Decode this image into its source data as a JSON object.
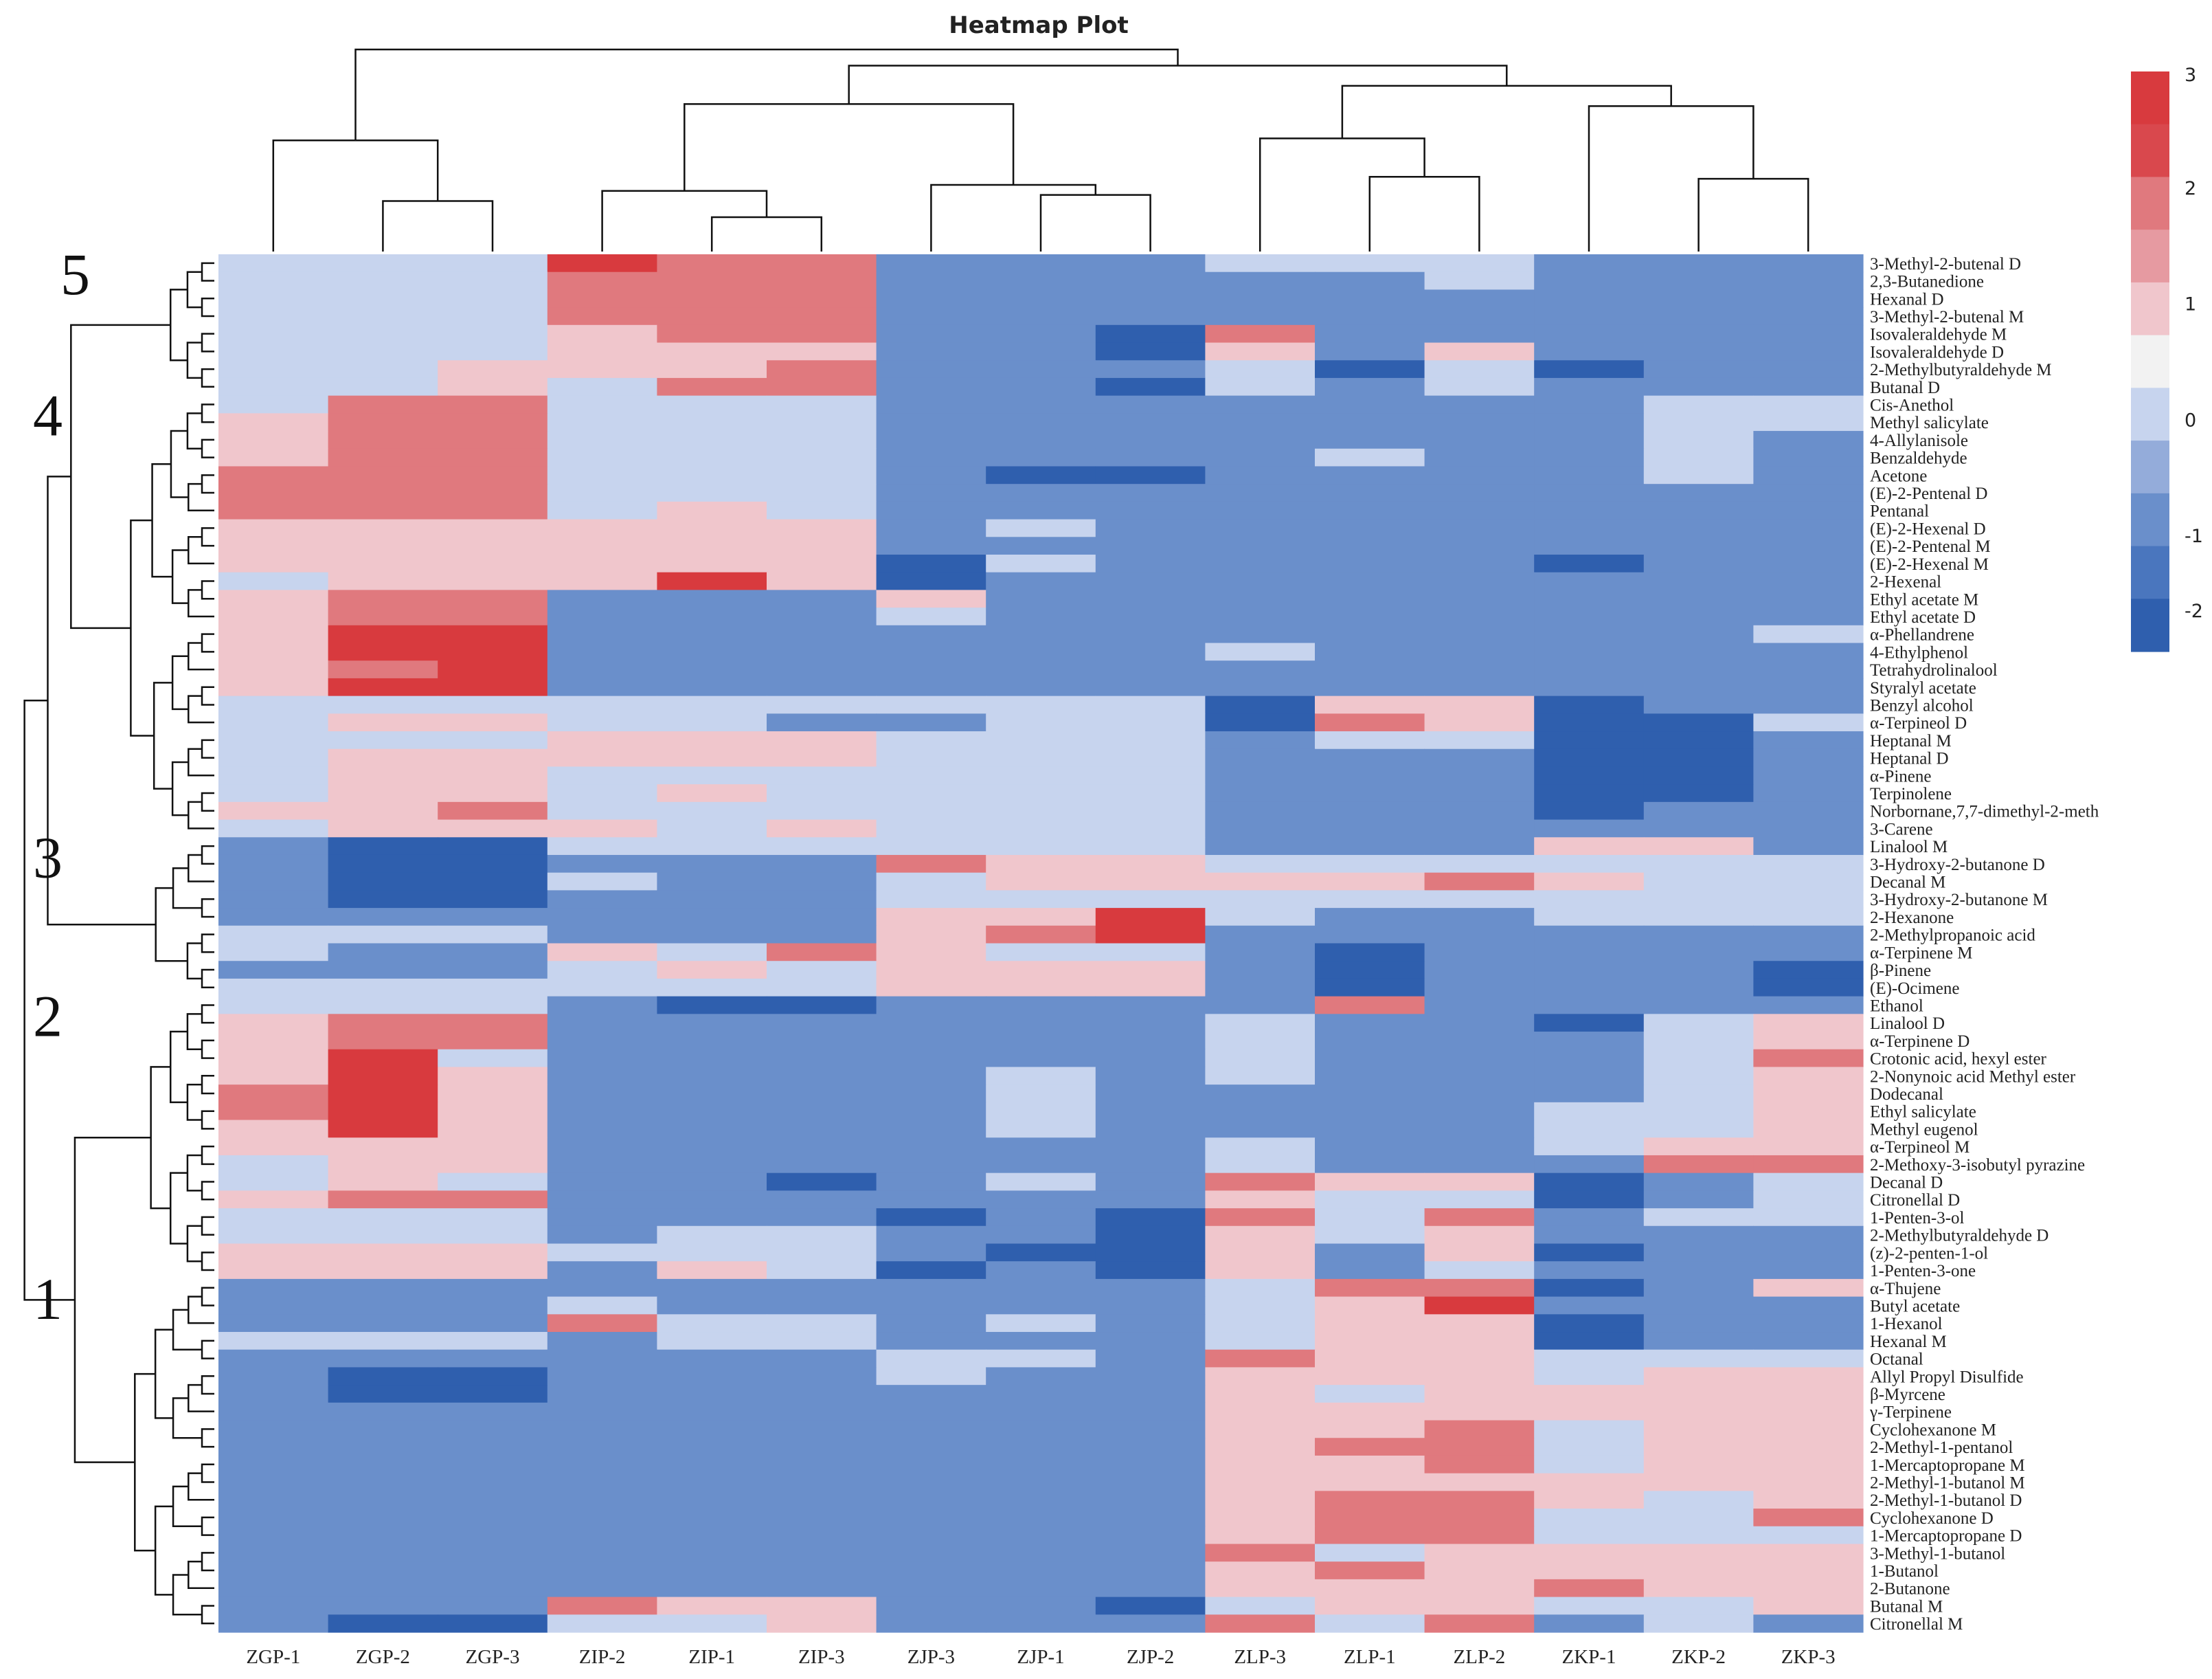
{
  "chart_data": {
    "type": "heatmap",
    "title": "Heatmap Plot",
    "columns": [
      "ZGP-1",
      "ZGP-2",
      "ZGP-3",
      "ZIP-2",
      "ZIP-1",
      "ZIP-3",
      "ZJP-3",
      "ZJP-1",
      "ZJP-2",
      "ZLP-3",
      "ZLP-1",
      "ZLP-2",
      "ZKP-1",
      "ZKP-2",
      "ZKP-3"
    ],
    "rows": [
      "3-Methyl-2-butenal D",
      "2,3-Butanedione",
      "Hexanal D",
      "3-Methyl-2-butenal M",
      "Isovaleraldehyde M",
      "Isovaleraldehyde D",
      "2-Methylbutyraldehyde M",
      "Butanal D",
      "Cis-Anethol",
      "Methyl salicylate",
      "4-Allylanisole",
      "Benzaldehyde",
      "Acetone",
      "(E)-2-Pentenal D",
      "Pentanal",
      "(E)-2-Hexenal D",
      "(E)-2-Pentenal M",
      "(E)-2-Hexenal M",
      "2-Hexenal",
      "Ethyl acetate M",
      "Ethyl acetate D",
      "α-Phellandrene",
      "4-Ethylphenol",
      "Tetrahydrolinalool",
      "Styralyl acetate",
      "Benzyl alcohol",
      "α-Terpineol D",
      "Heptanal M",
      "Heptanal D",
      "α-Pinene",
      "Terpinolene",
      "Norbornane,7,7-dimethyl-2-meth",
      "3-Carene",
      "Linalool M",
      "3-Hydroxy-2-butanone D",
      "Decanal M",
      "3-Hydroxy-2-butanone M",
      "2-Hexanone",
      "2-Methylpropanoic acid",
      "α-Terpinene M",
      "β-Pinene",
      "(E)-Ocimene",
      "Ethanol",
      "Linalool D",
      "α-Terpinene D",
      "Crotonic acid, hexyl ester",
      "2-Nonynoic acid Methyl ester",
      "Dodecanal",
      "Ethyl salicylate",
      "Methyl eugenol",
      "α-Terpineol M",
      "2-Methoxy-3-isobutyl pyrazine",
      "Decanal D",
      "Citronellal D",
      "1-Penten-3-ol",
      "2-Methylbutyraldehyde D",
      "(z)-2-penten-1-ol",
      "1-Penten-3-one",
      "α-Thujene",
      "Butyl acetate",
      "1-Hexanol",
      "Hexanal M",
      "Octanal",
      "Allyl Propyl Disulfide",
      "β-Myrcene",
      "γ-Terpinene",
      "Cyclohexanone M",
      "2-Methyl-1-pentanol",
      "1-Mercaptopropane M",
      "2-Methyl-1-butanol M",
      "2-Methyl-1-butanol D",
      "Cyclohexanone D",
      "1-Mercaptopropane D",
      "3-Methyl-1-butanol",
      "1-Butanol",
      "2-Butanone",
      "Butanal M",
      "Citronellal M"
    ],
    "values": [
      [
        0,
        0,
        0,
        3,
        2,
        2,
        -1,
        -1,
        -1,
        0,
        0,
        0,
        -1,
        -1,
        -1
      ],
      [
        0,
        0,
        0,
        2,
        2,
        2,
        -1,
        -1,
        -1,
        -1,
        -1,
        0,
        -1,
        -1,
        -1
      ],
      [
        0,
        0,
        0,
        2,
        2,
        2,
        -1,
        -1,
        -1,
        -1,
        -1,
        -1,
        -1,
        -1,
        -1
      ],
      [
        0,
        0,
        0,
        2,
        2,
        2,
        -1,
        -1,
        -1,
        -1,
        -1,
        -1,
        -1,
        -1,
        -1
      ],
      [
        0,
        0,
        0,
        1,
        2,
        2,
        -1,
        -1,
        -2,
        2,
        -1,
        -1,
        -1,
        -1,
        -1
      ],
      [
        0,
        0,
        0,
        1,
        1,
        1,
        -1,
        -1,
        -2,
        1,
        -1,
        1,
        -1,
        -1,
        -1
      ],
      [
        0,
        0,
        1,
        1,
        1,
        2,
        -1,
        -1,
        -1,
        0,
        -2,
        0,
        -2,
        -1,
        -1
      ],
      [
        0,
        0,
        1,
        0,
        2,
        2,
        -1,
        -1,
        -2,
        0,
        -1,
        0,
        -1,
        -1,
        -1
      ],
      [
        0,
        2,
        2,
        0,
        0,
        0,
        -1,
        -1,
        -1,
        -1,
        -1,
        -1,
        -1,
        0,
        0
      ],
      [
        1,
        2,
        2,
        0,
        0,
        0,
        -1,
        -1,
        -1,
        -1,
        -1,
        -1,
        -1,
        0,
        0
      ],
      [
        1,
        2,
        2,
        0,
        0,
        0,
        -1,
        -1,
        -1,
        -1,
        -1,
        -1,
        -1,
        0,
        -1
      ],
      [
        1,
        2,
        2,
        0,
        0,
        0,
        -1,
        -1,
        -1,
        -1,
        0,
        -1,
        -1,
        0,
        -1
      ],
      [
        2,
        2,
        2,
        0,
        0,
        0,
        -1,
        -2,
        -2,
        -1,
        -1,
        -1,
        -1,
        0,
        -1
      ],
      [
        2,
        2,
        2,
        0,
        0,
        0,
        -1,
        -1,
        -1,
        -1,
        -1,
        -1,
        -1,
        -1,
        -1
      ],
      [
        2,
        2,
        2,
        0,
        1,
        0,
        -1,
        -1,
        -1,
        -1,
        -1,
        -1,
        -1,
        -1,
        -1
      ],
      [
        1,
        1,
        1,
        1,
        1,
        1,
        -1,
        0,
        -1,
        -1,
        -1,
        -1,
        -1,
        -1,
        -1
      ],
      [
        1,
        1,
        1,
        1,
        1,
        1,
        -1,
        -1,
        -1,
        -1,
        -1,
        -1,
        -1,
        -1,
        -1
      ],
      [
        1,
        1,
        1,
        1,
        1,
        1,
        -2,
        0,
        -1,
        -1,
        -1,
        -1,
        -2,
        -1,
        -1
      ],
      [
        0,
        1,
        1,
        1,
        3,
        1,
        -2,
        -1,
        -1,
        -1,
        -1,
        -1,
        -1,
        -1,
        -1
      ],
      [
        1,
        2,
        2,
        -1,
        -1,
        -1,
        1,
        -1,
        -1,
        -1,
        -1,
        -1,
        -1,
        -1,
        -1
      ],
      [
        1,
        2,
        2,
        -1,
        -1,
        -1,
        0,
        -1,
        -1,
        -1,
        -1,
        -1,
        -1,
        -1,
        -1
      ],
      [
        1,
        3,
        3,
        -1,
        -1,
        -1,
        -1,
        -1,
        -1,
        -1,
        -1,
        -1,
        -1,
        -1,
        0
      ],
      [
        1,
        3,
        3,
        -1,
        -1,
        -1,
        -1,
        -1,
        -1,
        0,
        -1,
        -1,
        -1,
        -1,
        -1
      ],
      [
        1,
        2,
        3,
        -1,
        -1,
        -1,
        -1,
        -1,
        -1,
        -1,
        -1,
        -1,
        -1,
        -1,
        -1
      ],
      [
        1,
        3,
        3,
        -1,
        -1,
        -1,
        -1,
        -1,
        -1,
        -1,
        -1,
        -1,
        -1,
        -1,
        -1
      ],
      [
        0,
        0,
        0,
        0,
        0,
        0,
        0,
        0,
        0,
        -2,
        1,
        1,
        -2,
        -1,
        -1
      ],
      [
        0,
        1,
        1,
        0,
        0,
        -1,
        -1,
        0,
        0,
        -2,
        2,
        1,
        -2,
        -2,
        0
      ],
      [
        0,
        0,
        0,
        1,
        1,
        1,
        0,
        0,
        0,
        -1,
        0,
        0,
        -2,
        -2,
        -1
      ],
      [
        0,
        1,
        1,
        1,
        1,
        1,
        0,
        0,
        0,
        -1,
        -1,
        -1,
        -2,
        -2,
        -1
      ],
      [
        0,
        1,
        1,
        0,
        0,
        0,
        0,
        0,
        0,
        -1,
        -1,
        -1,
        -2,
        -2,
        -1
      ],
      [
        0,
        1,
        1,
        0,
        1,
        0,
        0,
        0,
        0,
        -1,
        -1,
        -1,
        -2,
        -2,
        -1
      ],
      [
        1,
        1,
        2,
        0,
        0,
        0,
        0,
        0,
        0,
        -1,
        -1,
        -1,
        -2,
        -1,
        -1
      ],
      [
        0,
        1,
        1,
        1,
        0,
        1,
        0,
        0,
        0,
        -1,
        -1,
        -1,
        -1,
        -1,
        -1
      ],
      [
        -1,
        -2,
        -2,
        0,
        0,
        0,
        0,
        0,
        0,
        -1,
        -1,
        -1,
        1,
        1,
        -1
      ],
      [
        -1,
        -2,
        -2,
        -1,
        -1,
        -1,
        2,
        1,
        1,
        0,
        0,
        0,
        0,
        0,
        0
      ],
      [
        -1,
        -2,
        -2,
        0,
        -1,
        -1,
        0,
        1,
        1,
        1,
        1,
        2,
        1,
        0,
        0
      ],
      [
        -1,
        -2,
        -2,
        -1,
        -1,
        -1,
        0,
        0,
        0,
        0,
        0,
        0,
        0,
        0,
        0
      ],
      [
        -1,
        -1,
        -1,
        -1,
        -1,
        -1,
        1,
        1,
        3,
        0,
        -1,
        -1,
        0,
        0,
        0
      ],
      [
        0,
        0,
        0,
        -1,
        -1,
        -1,
        1,
        2,
        3,
        -1,
        -1,
        -1,
        -1,
        -1,
        -1
      ],
      [
        0,
        -1,
        -1,
        1,
        0,
        2,
        1,
        0,
        0,
        -1,
        -2,
        -1,
        -1,
        -1,
        -1
      ],
      [
        -1,
        -1,
        -1,
        0,
        1,
        0,
        1,
        1,
        1,
        -1,
        -2,
        -1,
        -1,
        -1,
        -2
      ],
      [
        0,
        0,
        0,
        0,
        0,
        0,
        1,
        1,
        1,
        -1,
        -2,
        -1,
        -1,
        -1,
        -2
      ],
      [
        0,
        0,
        0,
        -1,
        -2,
        -2,
        -1,
        -1,
        -1,
        -1,
        2,
        -1,
        -1,
        -1,
        -1
      ],
      [
        1,
        2,
        2,
        -1,
        -1,
        -1,
        -1,
        -1,
        -1,
        0,
        -1,
        -1,
        -2,
        0,
        1
      ],
      [
        1,
        2,
        2,
        -1,
        -1,
        -1,
        -1,
        -1,
        -1,
        0,
        -1,
        -1,
        -1,
        0,
        1
      ],
      [
        1,
        3,
        0,
        -1,
        -1,
        -1,
        -1,
        -1,
        -1,
        0,
        -1,
        -1,
        -1,
        0,
        2
      ],
      [
        1,
        3,
        1,
        -1,
        -1,
        -1,
        -1,
        0,
        -1,
        0,
        -1,
        -1,
        -1,
        0,
        1
      ],
      [
        2,
        3,
        1,
        -1,
        -1,
        -1,
        -1,
        0,
        -1,
        -1,
        -1,
        -1,
        -1,
        0,
        1
      ],
      [
        2,
        3,
        1,
        -1,
        -1,
        -1,
        -1,
        0,
        -1,
        -1,
        -1,
        -1,
        0,
        0,
        1
      ],
      [
        1,
        3,
        1,
        -1,
        -1,
        -1,
        -1,
        0,
        -1,
        -1,
        -1,
        -1,
        0,
        0,
        1
      ],
      [
        1,
        1,
        1,
        -1,
        -1,
        -1,
        -1,
        -1,
        -1,
        0,
        -1,
        -1,
        0,
        1,
        1
      ],
      [
        0,
        1,
        1,
        -1,
        -1,
        -1,
        -1,
        -1,
        -1,
        0,
        -1,
        -1,
        -1,
        2,
        2
      ],
      [
        0,
        1,
        0,
        -1,
        -1,
        -2,
        -1,
        0,
        -1,
        2,
        1,
        1,
        -2,
        -1,
        0
      ],
      [
        1,
        2,
        2,
        -1,
        -1,
        -1,
        -1,
        -1,
        -1,
        1,
        0,
        0,
        -2,
        -1,
        0
      ],
      [
        0,
        0,
        0,
        -1,
        -1,
        -1,
        -2,
        -1,
        -2,
        2,
        0,
        2,
        -1,
        0,
        0
      ],
      [
        0,
        0,
        0,
        -1,
        0,
        0,
        -1,
        -1,
        -2,
        1,
        0,
        1,
        -1,
        -1,
        -1
      ],
      [
        1,
        1,
        1,
        0,
        0,
        0,
        -1,
        -2,
        -2,
        1,
        -1,
        1,
        -2,
        -1,
        -1
      ],
      [
        1,
        1,
        1,
        -1,
        1,
        0,
        -2,
        -1,
        -2,
        1,
        -1,
        0,
        -1,
        -1,
        -1
      ],
      [
        -1,
        -1,
        -1,
        -1,
        -1,
        -1,
        -1,
        -1,
        -1,
        0,
        2,
        2,
        -2,
        -1,
        1
      ],
      [
        -1,
        -1,
        -1,
        0,
        -1,
        -1,
        -1,
        -1,
        -1,
        0,
        1,
        3,
        -1,
        -1,
        -1
      ],
      [
        -1,
        -1,
        -1,
        2,
        0,
        0,
        -1,
        0,
        -1,
        0,
        1,
        1,
        -2,
        -1,
        -1
      ],
      [
        0,
        0,
        0,
        -1,
        0,
        0,
        -1,
        -1,
        -1,
        0,
        1,
        1,
        -2,
        -1,
        -1
      ],
      [
        -1,
        -1,
        -1,
        -1,
        -1,
        -1,
        0,
        0,
        -1,
        2,
        1,
        1,
        0,
        0,
        0
      ],
      [
        -1,
        -2,
        -2,
        -1,
        -1,
        -1,
        0,
        -1,
        -1,
        1,
        1,
        1,
        0,
        1,
        1
      ],
      [
        -1,
        -2,
        -2,
        -1,
        -1,
        -1,
        -1,
        -1,
        -1,
        1,
        0,
        1,
        1,
        1,
        1
      ],
      [
        -1,
        -1,
        -1,
        -1,
        -1,
        -1,
        -1,
        -1,
        -1,
        1,
        1,
        1,
        1,
        1,
        1
      ],
      [
        -1,
        -1,
        -1,
        -1,
        -1,
        -1,
        -1,
        -1,
        -1,
        1,
        1,
        2,
        0,
        1,
        1
      ],
      [
        -1,
        -1,
        -1,
        -1,
        -1,
        -1,
        -1,
        -1,
        -1,
        1,
        2,
        2,
        0,
        1,
        1
      ],
      [
        -1,
        -1,
        -1,
        -1,
        -1,
        -1,
        -1,
        -1,
        -1,
        1,
        1,
        2,
        0,
        1,
        1
      ],
      [
        -1,
        -1,
        -1,
        -1,
        -1,
        -1,
        -1,
        -1,
        -1,
        1,
        1,
        1,
        1,
        1,
        1
      ],
      [
        -1,
        -1,
        -1,
        -1,
        -1,
        -1,
        -1,
        -1,
        -1,
        1,
        2,
        2,
        1,
        0,
        1
      ],
      [
        -1,
        -1,
        -1,
        -1,
        -1,
        -1,
        -1,
        -1,
        -1,
        1,
        2,
        2,
        0,
        0,
        2
      ],
      [
        -1,
        -1,
        -1,
        -1,
        -1,
        -1,
        -1,
        -1,
        -1,
        1,
        2,
        2,
        0,
        0,
        0
      ],
      [
        -1,
        -1,
        -1,
        -1,
        -1,
        -1,
        -1,
        -1,
        -1,
        2,
        0,
        1,
        1,
        1,
        1
      ],
      [
        -1,
        -1,
        -1,
        -1,
        -1,
        -1,
        -1,
        -1,
        -1,
        1,
        2,
        1,
        1,
        1,
        1
      ],
      [
        -1,
        -1,
        -1,
        -1,
        -1,
        -1,
        -1,
        -1,
        -1,
        1,
        1,
        1,
        2,
        1,
        1
      ],
      [
        -1,
        -1,
        -1,
        2,
        1,
        1,
        -1,
        -1,
        -2,
        0,
        1,
        1,
        0,
        0,
        1
      ],
      [
        -1,
        -2,
        -2,
        0,
        0,
        1,
        -1,
        -1,
        -1,
        2,
        0,
        2,
        -1,
        0,
        -1
      ]
    ],
    "colorbar": {
      "min": -2,
      "max": 3,
      "ticks": [
        3,
        2,
        1,
        0,
        -1,
        -2
      ]
    },
    "color_scale": [
      "#2f5fae",
      "#4a76be",
      "#6a8fcb",
      "#94acda",
      "#c7d4ee",
      "#f2f2f2",
      "#f0c6cc",
      "#e69aa1",
      "#e0797e",
      "#d9484d",
      "#d83a3e"
    ],
    "row_clusters": [
      {
        "label": "5",
        "rows": [
          0,
          7
        ]
      },
      {
        "label": "4",
        "rows": [
          8,
          32
        ]
      },
      {
        "label": "3",
        "rows": [
          33,
          41
        ]
      },
      {
        "label": "2",
        "rows": [
          42,
          57
        ]
      },
      {
        "label": "1",
        "rows": [
          58,
          77
        ]
      }
    ],
    "column_dendrogram": {
      "merges": [
        [
          1,
          2,
          "a",
          0.25
        ],
        [
          0,
          "a",
          "b",
          0.55
        ],
        [
          4,
          5,
          "c",
          0.17
        ],
        [
          3,
          "c",
          "d",
          0.3
        ],
        [
          7,
          8,
          "e",
          0.28
        ],
        [
          6,
          "e",
          "f",
          0.33
        ],
        [
          "d",
          "f",
          "g",
          0.73
        ],
        [
          10,
          11,
          "h",
          0.37
        ],
        [
          9,
          "h",
          "i",
          0.56
        ],
        [
          13,
          14,
          "j",
          0.36
        ],
        [
          12,
          "j",
          "k",
          0.72
        ],
        [
          "i",
          "k",
          "l",
          0.82
        ],
        [
          "g",
          "l",
          "m",
          0.92
        ],
        [
          "b",
          "m",
          "n",
          1.0
        ]
      ]
    }
  }
}
